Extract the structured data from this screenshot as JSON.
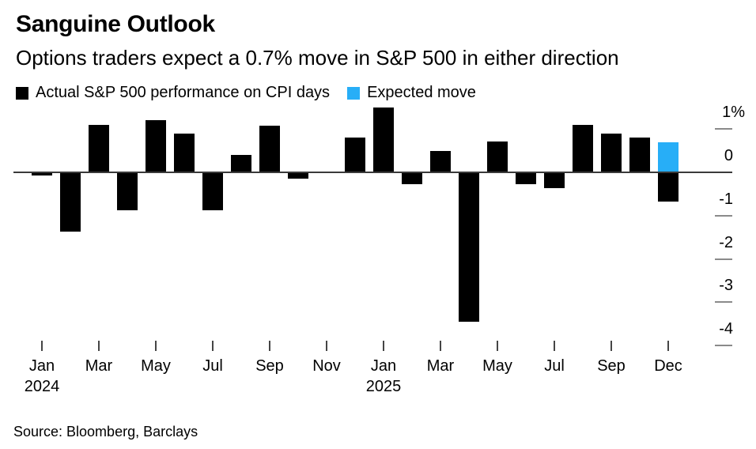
{
  "header": {
    "title": "Sanguine Outlook",
    "subtitle": "Options traders expect a 0.7% move in S&P 500 in either direction"
  },
  "legend": [
    {
      "label": "Actual S&P 500 performance on CPI days",
      "color": "#000000"
    },
    {
      "label": "Expected move",
      "color": "#27aef7"
    }
  ],
  "source": "Source: Bloomberg, Barclays",
  "chart_data": {
    "type": "bar",
    "title": "Sanguine Outlook",
    "subtitle": "Options traders expect a 0.7% move in S&P 500 in either direction",
    "unit": "%",
    "ylim": [
      -4.2,
      1.6
    ],
    "grid": false,
    "legend_position": "top-left",
    "yticks": [
      {
        "value": 1,
        "label": "1%"
      },
      {
        "value": 0,
        "label": "0"
      },
      {
        "value": -1,
        "label": "-1"
      },
      {
        "value": -2,
        "label": "-2"
      },
      {
        "value": -3,
        "label": "-3"
      },
      {
        "value": -4,
        "label": "-4"
      }
    ],
    "bars": [
      {
        "month": "Jan 2024",
        "value": -0.07
      },
      {
        "month": "Feb 2024",
        "value": -1.37
      },
      {
        "month": "Mar 2024",
        "value": 1.1
      },
      {
        "month": "Apr 2024",
        "value": -0.88
      },
      {
        "month": "May 2024",
        "value": 1.2
      },
      {
        "month": "Jun 2024",
        "value": 0.9
      },
      {
        "month": "Jul 2024",
        "value": -0.88
      },
      {
        "month": "Aug 2024",
        "value": 0.4
      },
      {
        "month": "Sep 2024",
        "value": 1.08
      },
      {
        "month": "Oct 2024",
        "value": -0.15
      },
      {
        "month": "Nov 2024",
        "value": 0.02
      },
      {
        "month": "Dec 2024",
        "value": 0.8
      },
      {
        "month": "Jan 2025",
        "value": 1.5
      },
      {
        "month": "Feb 2025",
        "value": -0.28
      },
      {
        "month": "Mar 2025",
        "value": 0.5
      },
      {
        "month": "Apr 2025",
        "value": -3.45
      },
      {
        "month": "May 2025",
        "value": 0.71
      },
      {
        "month": "Jun 2025",
        "value": -0.28
      },
      {
        "month": "Jul 2025",
        "value": -0.37
      },
      {
        "month": "Aug 2025",
        "value": 1.09
      },
      {
        "month": "Sep 2025",
        "value": 0.89
      },
      {
        "month": "Oct 2025",
        "value": 0.81
      },
      {
        "month": "Dec 2025",
        "value": -0.68,
        "expected_value": 0.7
      }
    ],
    "xticks": [
      {
        "index": 0,
        "label": "Jan",
        "year": "2024"
      },
      {
        "index": 2,
        "label": "Mar"
      },
      {
        "index": 4,
        "label": "May"
      },
      {
        "index": 6,
        "label": "Jul"
      },
      {
        "index": 8,
        "label": "Sep"
      },
      {
        "index": 10,
        "label": "Nov"
      },
      {
        "index": 12,
        "label": "Jan",
        "year": "2025"
      },
      {
        "index": 14,
        "label": "Mar"
      },
      {
        "index": 16,
        "label": "May"
      },
      {
        "index": 18,
        "label": "Jul"
      },
      {
        "index": 20,
        "label": "Sep"
      },
      {
        "index": 22,
        "label": "Dec"
      }
    ]
  }
}
